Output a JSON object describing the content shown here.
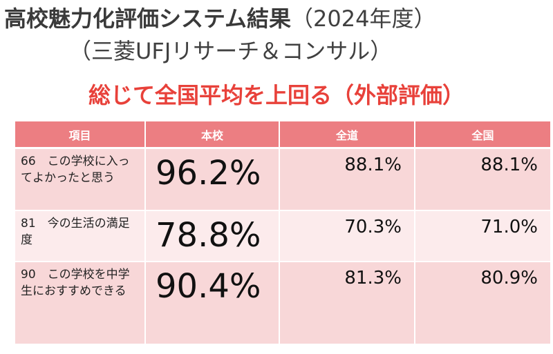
{
  "title": {
    "main": "高校魅力化評価システム結果",
    "year": "（2024年度）",
    "subtitle": "（三菱UFJリサーチ＆コンサル）"
  },
  "headline": "総じて全国平均を上回る（外部評価）",
  "table": {
    "headers": [
      "項目",
      "本校",
      "全道",
      "全国"
    ],
    "rows": [
      {
        "item": "66　この学校に入ってよかったと思う",
        "school": "96.2%",
        "hokkaido": "88.1%",
        "national": "88.1%"
      },
      {
        "item": "81　今の生活の満足度",
        "school": "78.8%",
        "hokkaido": "70.3%",
        "national": "71.0%"
      },
      {
        "item": "90　この学校を中学生におすすめできる",
        "school": "90.4%",
        "hokkaido": "81.3%",
        "national": "80.9%"
      }
    ]
  },
  "colors": {
    "headline": "#e8413a",
    "header_bg": "#ec7e82",
    "row_dark": "#f8d7d8",
    "row_light": "#fcebec"
  }
}
